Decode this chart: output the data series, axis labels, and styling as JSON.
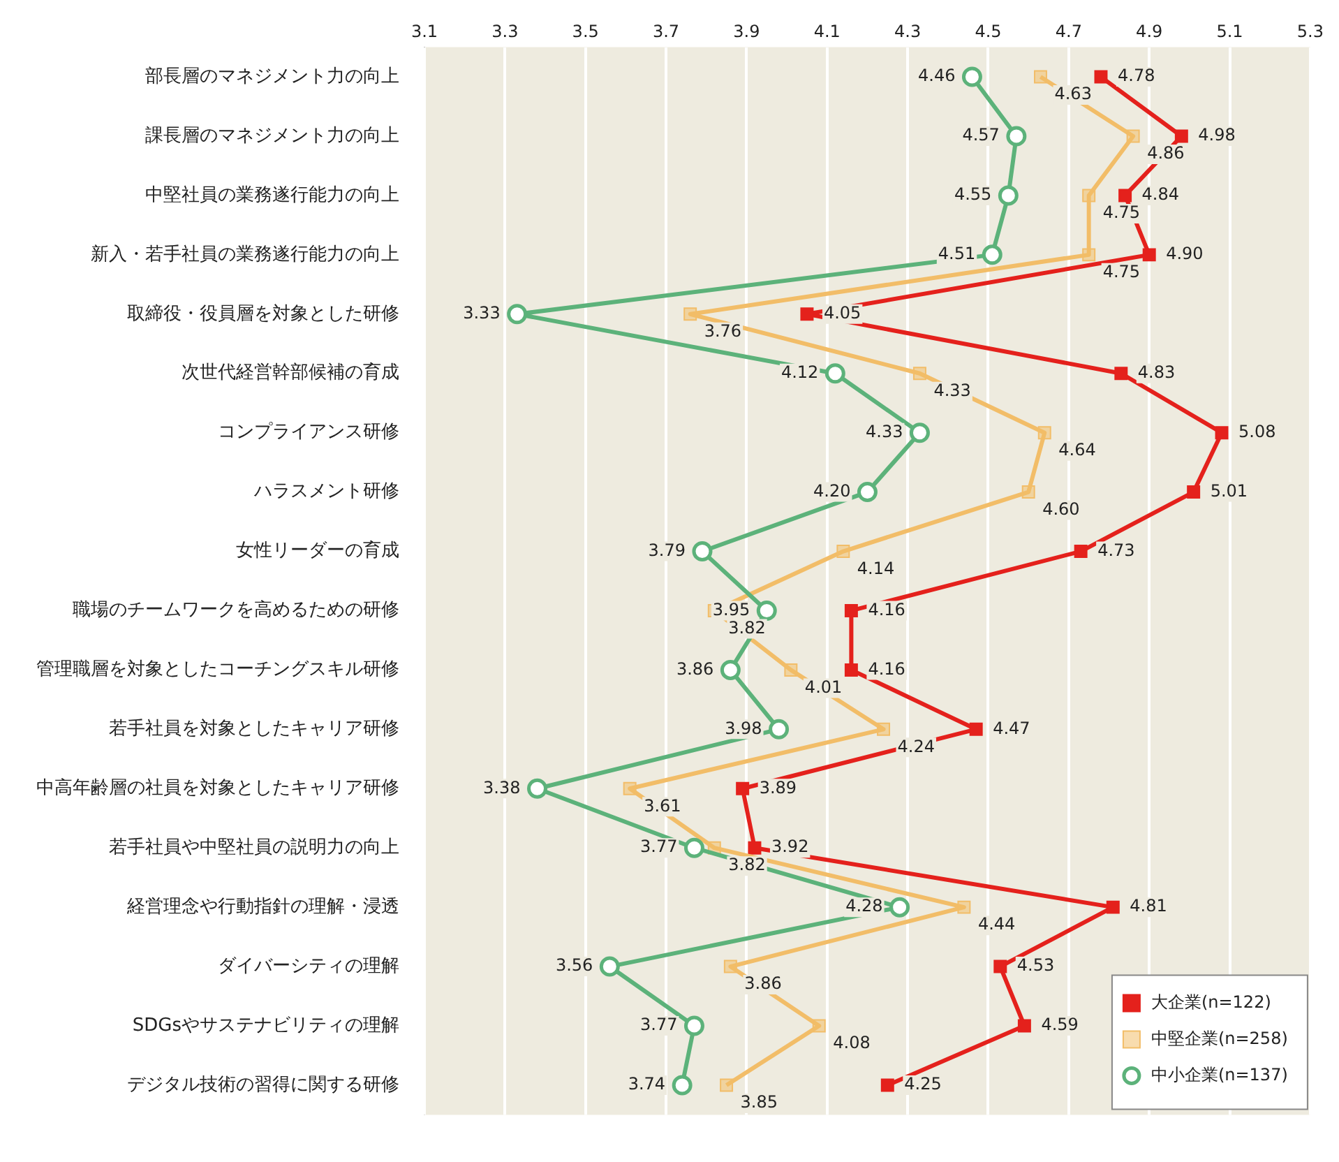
{
  "chart_data": {
    "type": "line",
    "orientation": "horizontal",
    "categories": [
      "部長層のマネジメント力の向上",
      "課長層のマネジメント力の向上",
      "中堅社員の業務遂行能力の向上",
      "新入・若手社員の業務遂行能力の向上",
      "取締役・役員層を対象とした研修",
      "次世代経営幹部候補の育成",
      "コンプライアンス研修",
      "ハラスメント研修",
      "女性リーダーの育成",
      "職場のチームワークを高めるための研修",
      "管理職層を対象としたコーチングスキル研修",
      "若手社員を対象としたキャリア研修",
      "中高年齢層の社員を対象としたキャリア研修",
      "若手社員や中堅社員の説明力の向上",
      "経営理念や行動指針の理解・浸透",
      "ダイバーシティの理解",
      "SDGsやサステナビリティの理解",
      "デジタル技術の習得に関する研修"
    ],
    "series": [
      {
        "name": "大企業(n=122)",
        "color": "#e4211c",
        "marker": "square",
        "values": [
          4.78,
          4.98,
          4.84,
          4.9,
          4.05,
          4.83,
          5.08,
          5.01,
          4.73,
          4.16,
          4.16,
          4.47,
          3.89,
          3.92,
          4.81,
          4.53,
          4.59,
          4.25
        ],
        "value_labels": [
          "4.78",
          "4.98",
          "4.84",
          "4.90",
          "4.05",
          "4.83",
          "5.08",
          "5.01",
          "4.73",
          "4.16",
          "4.16",
          "4.47",
          "3.89",
          "3.92",
          "4.81",
          "4.53",
          "4.59",
          "4.25"
        ]
      },
      {
        "name": "中堅企業(n=258)",
        "color": "#f2bd68",
        "marker": "square",
        "values": [
          4.63,
          4.86,
          4.75,
          4.75,
          3.76,
          4.33,
          4.64,
          4.6,
          4.14,
          3.82,
          4.01,
          4.24,
          3.61,
          3.82,
          4.44,
          3.86,
          4.08,
          3.85
        ],
        "value_labels": [
          "4.63",
          "4.86",
          "4.75",
          "4.75",
          "3.76",
          "4.33",
          "4.64",
          "4.60",
          "4.14",
          "3.82",
          "4.01",
          "4.24",
          "3.61",
          "3.82",
          "4.44",
          "3.86",
          "4.08",
          "3.85"
        ]
      },
      {
        "name": "中小企業(n=137)",
        "color": "#5cb27a",
        "marker": "circle",
        "values": [
          4.46,
          4.57,
          4.55,
          4.51,
          3.33,
          4.12,
          4.33,
          4.2,
          3.79,
          3.95,
          3.86,
          3.98,
          3.38,
          3.77,
          4.28,
          3.56,
          3.77,
          3.74
        ],
        "value_labels": [
          "4.46",
          "4.57",
          "4.55",
          "4.51",
          "3.33",
          "4.12",
          "4.33",
          "4.20",
          "3.79",
          "3.95",
          "3.86",
          "3.98",
          "3.38",
          "3.77",
          "4.28",
          "3.56",
          "3.77",
          "3.74"
        ]
      }
    ],
    "xlim": [
      3.1,
      5.3
    ],
    "xticks": [
      "3.1",
      "3.3",
      "3.5",
      "3.7",
      "3.9",
      "4.1",
      "4.3",
      "4.5",
      "4.7",
      "4.9",
      "5.1",
      "5.3"
    ],
    "grid": "x",
    "legend": "bottom right"
  }
}
